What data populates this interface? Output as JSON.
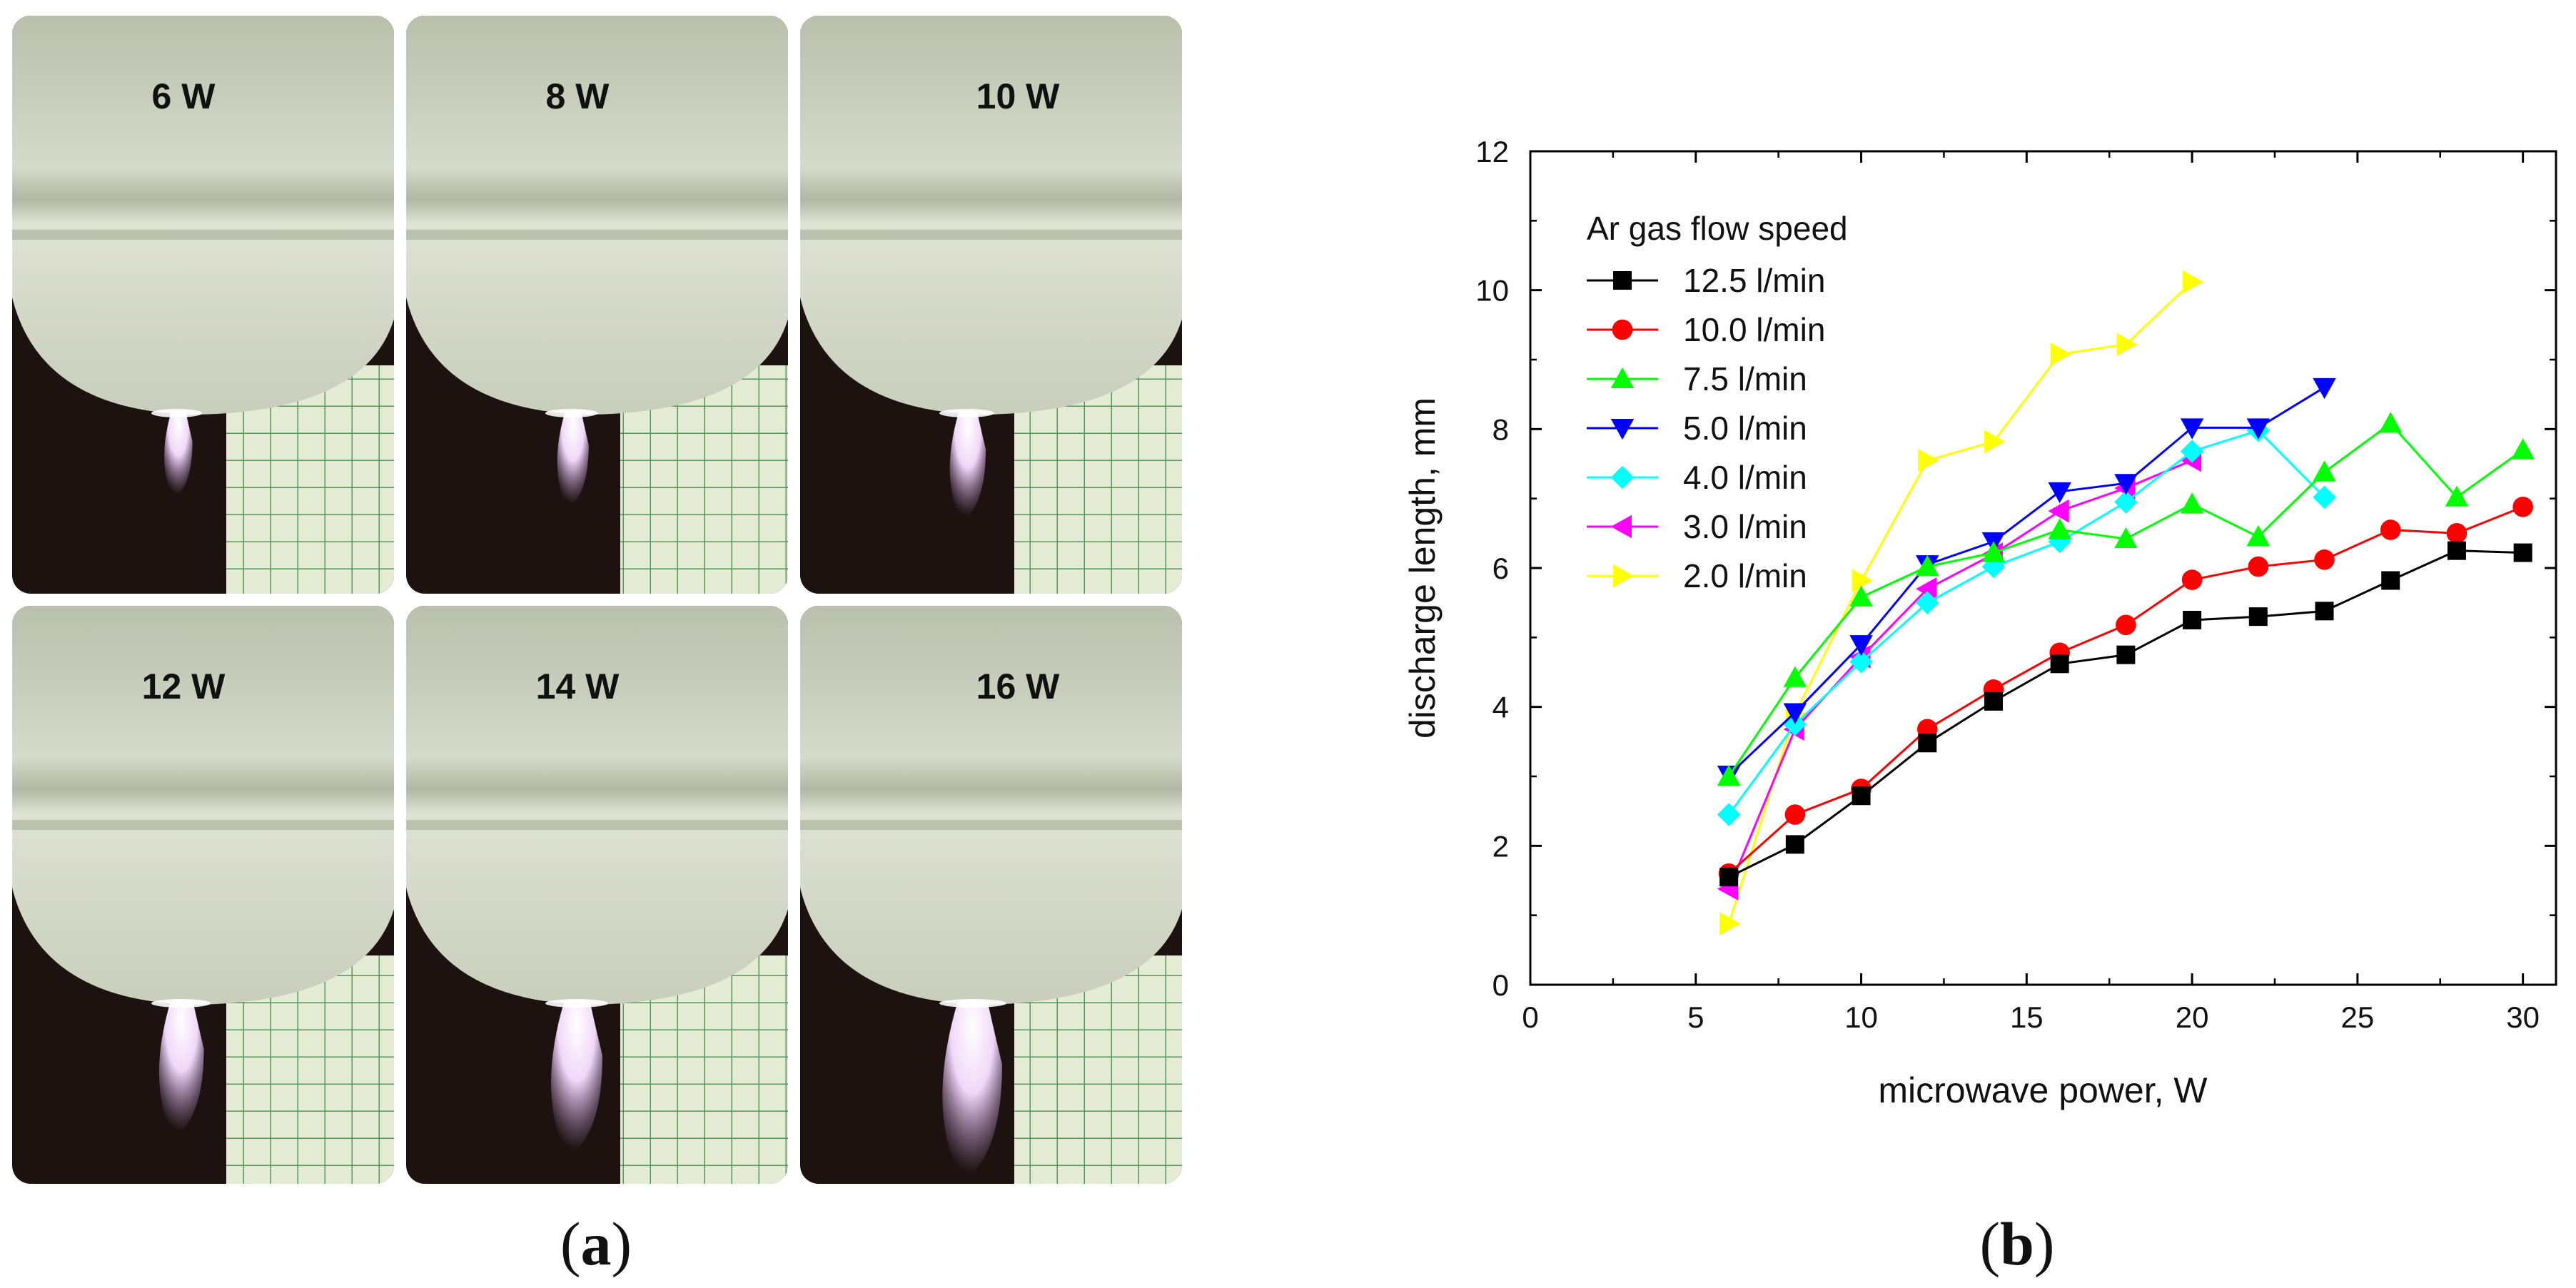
{
  "panel_a": {
    "caption_open": "(",
    "caption_letter": "a",
    "caption_close": ")",
    "photos": [
      {
        "label": "6 W",
        "flame_level": 0.28
      },
      {
        "label": "8 W",
        "flame_level": 0.34
      },
      {
        "label": "10 W",
        "flame_level": 0.42
      },
      {
        "label": "12 W",
        "flame_level": 0.58
      },
      {
        "label": "14 W",
        "flame_level": 0.7
      },
      {
        "label": "16 W",
        "flame_level": 0.85
      }
    ],
    "colors": {
      "dielectric": "#c8ccbb",
      "background": "#1c1310",
      "grid_paper": "#e4ecd6",
      "grid_line": "#3fa34d",
      "plasma": "#e8c8f2"
    }
  },
  "panel_b": {
    "caption_open": "(",
    "caption_letter": "b",
    "caption_close": ")"
  },
  "chart_data": {
    "type": "line",
    "title": "",
    "xlabel": "microwave power, W",
    "ylabel": "discharge length, mm",
    "xlim": [
      0,
      31
    ],
    "ylim": [
      0,
      12
    ],
    "xticks": [
      0,
      5,
      10,
      15,
      20,
      25,
      30
    ],
    "yticks": [
      0,
      2,
      4,
      6,
      8,
      10,
      12
    ],
    "grid": false,
    "legend_title": "Ar gas flow speed",
    "legend_position": "top-left",
    "series": [
      {
        "name": "12.5 l/min",
        "color": "#000000",
        "marker": "square",
        "x": [
          6,
          8,
          10,
          12,
          14,
          16,
          18,
          20,
          22,
          24,
          26,
          28,
          30
        ],
        "y": [
          1.55,
          2.02,
          2.72,
          3.48,
          4.08,
          4.62,
          4.75,
          5.25,
          5.3,
          5.38,
          5.82,
          6.25,
          6.22
        ]
      },
      {
        "name": "10.0 l/min",
        "color": "#ff0000",
        "marker": "circle",
        "x": [
          6,
          8,
          10,
          12,
          14,
          16,
          18,
          20,
          22,
          24,
          26,
          28,
          30
        ],
        "y": [
          1.6,
          2.45,
          2.82,
          3.68,
          4.25,
          4.78,
          5.18,
          5.83,
          6.02,
          6.12,
          6.55,
          6.5,
          6.88
        ]
      },
      {
        "name": "7.5 l/min",
        "color": "#00ff00",
        "marker": "triangle-up",
        "x": [
          6,
          8,
          10,
          12,
          14,
          16,
          18,
          20,
          22,
          24,
          26,
          28,
          30
        ],
        "y": [
          3.0,
          4.42,
          5.58,
          6.02,
          6.22,
          6.55,
          6.42,
          6.92,
          6.45,
          7.38,
          8.08,
          7.02,
          7.7
        ]
      },
      {
        "name": "5.0 l/min",
        "color": "#0000ff",
        "marker": "triangle-down",
        "x": [
          6,
          8,
          10,
          12,
          14,
          16,
          18,
          20,
          22,
          24
        ],
        "y": [
          3.02,
          3.92,
          4.9,
          6.05,
          6.38,
          7.1,
          7.22,
          8.02,
          8.02,
          8.6
        ]
      },
      {
        "name": "4.0 l/min",
        "color": "#00ffff",
        "marker": "diamond",
        "x": [
          6,
          8,
          10,
          12,
          14,
          16,
          18,
          20,
          22,
          24
        ],
        "y": [
          2.45,
          3.75,
          4.65,
          5.5,
          6.02,
          6.38,
          6.95,
          7.68,
          7.98,
          7.02
        ]
      },
      {
        "name": "3.0 l/min",
        "color": "#ff00ff",
        "marker": "triangle-left",
        "x": [
          6,
          8,
          10,
          12,
          14,
          16,
          18,
          20
        ],
        "y": [
          1.38,
          3.68,
          4.72,
          5.7,
          6.2,
          6.82,
          7.15,
          7.55
        ]
      },
      {
        "name": "2.0 l/min",
        "color": "#ffff00",
        "marker": "triangle-right",
        "x": [
          6,
          8,
          10,
          12,
          14,
          16,
          18,
          20
        ],
        "y": [
          0.88,
          3.9,
          5.82,
          7.55,
          7.82,
          9.08,
          9.22,
          10.12
        ]
      }
    ]
  }
}
